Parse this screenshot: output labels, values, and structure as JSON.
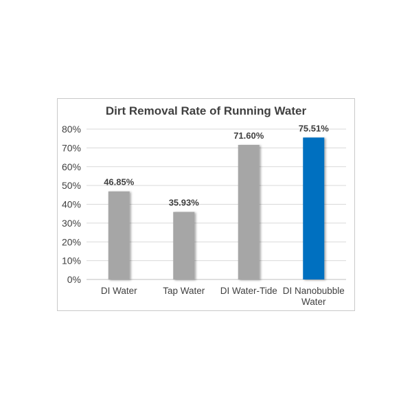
{
  "chart_data": {
    "type": "bar",
    "title": "Dirt Removal Rate of Running Water",
    "xlabel": "",
    "ylabel": "",
    "categories": [
      [
        "DI Water"
      ],
      [
        "Tap Water"
      ],
      [
        "DI Water-Tide"
      ],
      [
        "DI Nanobubble",
        "Water"
      ]
    ],
    "values": [
      46.85,
      35.93,
      71.6,
      75.51
    ],
    "data_labels": [
      "46.85%",
      "35.93%",
      "71.60%",
      "75.51%"
    ],
    "ylim": [
      0,
      80
    ],
    "yticks": [
      "0%",
      "10%",
      "20%",
      "30%",
      "40%",
      "50%",
      "60%",
      "70%",
      "80%"
    ],
    "grid": true,
    "legend": "none",
    "colors": {
      "bars": [
        "#a6a6a6",
        "#a6a6a6",
        "#a6a6a6",
        "#0070c0"
      ],
      "grid": "#d9d9d9",
      "text": "#404040"
    }
  }
}
